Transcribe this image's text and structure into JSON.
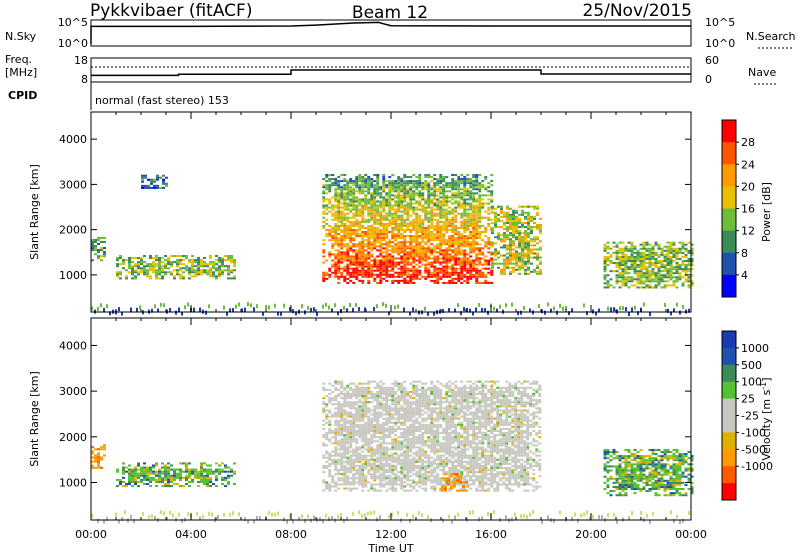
{
  "header": {
    "station": "Pykkvibaer (fitACF)",
    "beam": "Beam 12",
    "date": "25/Nov/2015"
  },
  "sky_panel": {
    "left_label": "N.Sky",
    "right_label": "N.Search",
    "left_ticks": [
      "10^5",
      "10^0"
    ],
    "right_ticks": [
      "10^5",
      "10^0"
    ]
  },
  "freq_panel": {
    "left_label_top": "Freq.",
    "left_label_bottom": "[MHz]",
    "left_ticks": [
      "18",
      "8"
    ],
    "right_label": "Nave",
    "right_ticks": [
      "60",
      "0"
    ],
    "cpid_label": "CPID",
    "mode_text": "normal (fast stereo) 153"
  },
  "colors": {
    "power_scale": [
      "#0000ff",
      "#2050b0",
      "#3a8a5a",
      "#6dbd3a",
      "#e8c000",
      "#ff9a00",
      "#ff5500",
      "#ff0000"
    ],
    "velocity_scale": [
      "#ff0000",
      "#ff5a00",
      "#ff9a00",
      "#e0b000",
      "#c8c8c0",
      "#c8c8c0",
      "#55c030",
      "#3a8a5a",
      "#2050b0",
      "#1a3cb0"
    ],
    "ground_scatter": "#b0b0a8"
  },
  "chart_data": [
    {
      "type": "line",
      "panel": "sky-noise",
      "xlabel": "",
      "ylabel": "N.Sky",
      "yscale": "log",
      "ylim": [
        1,
        100000
      ],
      "x": [
        "00:00",
        "04:00",
        "08:00",
        "09:00",
        "10:30",
        "11:30",
        "12:00",
        "16:00",
        "20:00",
        "24:00"
      ],
      "series": [
        {
          "name": "N.Sky",
          "values": [
            10000,
            10000,
            12000,
            20000,
            60000,
            80000,
            14000,
            12000,
            12000,
            12000
          ]
        }
      ]
    },
    {
      "type": "line",
      "panel": "frequency",
      "xlabel": "",
      "ylabel": "Freq. [MHz]",
      "ylim": [
        8,
        18
      ],
      "x": [
        "00:00",
        "03:00",
        "03:30",
        "08:00",
        "12:00",
        "18:00",
        "24:00"
      ],
      "series": [
        {
          "name": "Freq.",
          "values": [
            10.3,
            10.3,
            10.9,
            13.0,
            13.0,
            11.0,
            11.0
          ]
        }
      ]
    },
    {
      "type": "heatmap",
      "panel": "power",
      "xlabel": "",
      "ylabel": "Slant Range [km]",
      "xlim": [
        "00:00",
        "24:00"
      ],
      "ylim": [
        180,
        4600
      ],
      "colorbar_label": "Power [dB]",
      "colorbar_ticks": [
        "4",
        "8",
        "12",
        "16",
        "20",
        "24",
        "28"
      ],
      "clim": [
        0,
        32
      ],
      "regions": [
        {
          "t_start": "00:00",
          "t_end": "00:30",
          "range_km": [
            1300,
            1800
          ],
          "power_db": 10
        },
        {
          "t_start": "01:00",
          "t_end": "05:45",
          "range_km": [
            900,
            1400
          ],
          "power_db": 12
        },
        {
          "t_start": "02:00",
          "t_end": "03:00",
          "range_km": [
            2900,
            3200
          ],
          "power_db": 6
        },
        {
          "t_start": "09:15",
          "t_end": "16:00",
          "range_km": [
            800,
            3200
          ],
          "power_db": 24
        },
        {
          "t_start": "16:00",
          "t_end": "18:00",
          "range_km": [
            1000,
            2500
          ],
          "power_db": 14
        },
        {
          "t_start": "20:30",
          "t_end": "24:00",
          "range_km": [
            700,
            1700
          ],
          "power_db": 12
        }
      ]
    },
    {
      "type": "heatmap",
      "panel": "velocity",
      "xlabel": "Time UT",
      "ylabel": "Slant Range [km]",
      "xlim": [
        "00:00",
        "24:00"
      ],
      "ylim": [
        180,
        4600
      ],
      "colorbar_label": "Velocity [m s^-1]",
      "colorbar_ticks": [
        "1000",
        "500",
        "100",
        "25",
        "-25",
        "-100",
        "-500",
        "-1000"
      ],
      "clim": [
        -1300,
        1300
      ],
      "x_ticks": [
        "00:00",
        "04:00",
        "08:00",
        "12:00",
        "16:00",
        "20:00",
        "00:00"
      ],
      "regions": [
        {
          "t_start": "00:00",
          "t_end": "00:30",
          "range_km": [
            1300,
            1800
          ],
          "velocity_ms": -150
        },
        {
          "t_start": "01:00",
          "t_end": "05:45",
          "range_km": [
            900,
            1400
          ],
          "velocity_ms": 100
        },
        {
          "t_start": "09:15",
          "t_end": "18:00",
          "range_km": [
            800,
            3200
          ],
          "velocity_ms": 0
        },
        {
          "t_start": "14:00",
          "t_end": "15:00",
          "range_km": [
            800,
            1200
          ],
          "velocity_ms": -200
        },
        {
          "t_start": "20:30",
          "t_end": "24:00",
          "range_km": [
            700,
            1700
          ],
          "velocity_ms": 200
        }
      ]
    }
  ]
}
